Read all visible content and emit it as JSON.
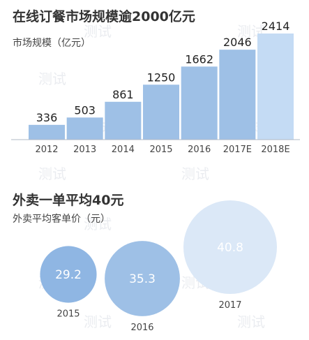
{
  "chart_data": [
    {
      "type": "bar",
      "title": "在线订餐市场规模逾2000亿元",
      "ylabel": "市场规模（亿元）",
      "categories": [
        "2012",
        "2013",
        "2014",
        "2015",
        "2016",
        "2017E",
        "2018E"
      ],
      "values": [
        336,
        503,
        861,
        1250,
        1662,
        2046,
        2414
      ],
      "ylim": [
        0,
        2414
      ],
      "grid": false,
      "colors": [
        "#9ec0e6",
        "#9ec0e6",
        "#9ec0e6",
        "#9ec0e6",
        "#9ec0e6",
        "#9ec0e6",
        "#c4dbf4"
      ]
    },
    {
      "type": "bubble",
      "title": "外卖一单平均40元",
      "ylabel": "外卖平均客单价（元）",
      "categories": [
        "2015",
        "2016",
        "2017"
      ],
      "values": [
        29.2,
        35.3,
        40.8
      ],
      "colors": [
        "#8fb6e3",
        "#9ec0e6",
        "#dbe8f7"
      ]
    }
  ],
  "watermark": "测试",
  "colors": {
    "text_dark": "#333333",
    "value_text": "#222222",
    "axis": "#b0b8c4",
    "bubble_label": "#ffffff"
  }
}
